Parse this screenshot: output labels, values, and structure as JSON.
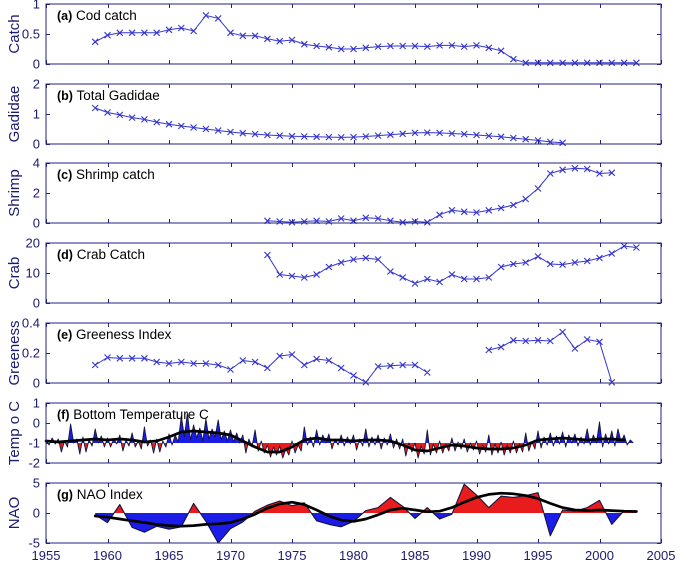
{
  "figure": {
    "description": "Seven stacked time-series panels, West Greenland ecosystem indicators 1955-2005"
  },
  "style": {
    "background": "#ffffff",
    "axis_color": "#23237f",
    "tick_text_color": "#1b1b70",
    "title_color": "#000000",
    "series_color": "#3636cf",
    "noise_line": "#15153a",
    "smooth_line": "#000000",
    "fill_red": "#e81c1c",
    "fill_blue": "#1c1ce8"
  },
  "x_axis": {
    "min": 1955,
    "max": 2005,
    "ticks": [
      1955,
      1960,
      1965,
      1970,
      1975,
      1980,
      1985,
      1990,
      1995,
      2000,
      2005
    ],
    "tick_labels": [
      "1955",
      "1960",
      "1965",
      "1970",
      "1975",
      "1980",
      "1985",
      "1990",
      "1995",
      "2000",
      "2005"
    ]
  },
  "chart_data": [
    {
      "id": "a",
      "type": "line",
      "title_tag": "(a)",
      "title": "Cod catch",
      "ylabel": "Catch",
      "ylim": [
        0,
        1
      ],
      "yticks": [
        0,
        0.5,
        1
      ],
      "marker": "x",
      "segments": [
        {
          "start_year": 1959,
          "step": 1,
          "values": [
            0.37,
            0.48,
            0.52,
            0.52,
            0.52,
            0.52,
            0.57,
            0.6,
            0.55,
            0.81,
            0.76,
            0.52,
            0.47,
            0.47,
            0.42,
            0.38,
            0.4,
            0.33,
            0.3,
            0.28,
            0.25,
            0.25,
            0.27,
            0.29,
            0.3,
            0.3,
            0.3,
            0.29,
            0.31,
            0.31,
            0.29,
            0.31,
            0.27,
            0.22,
            0.08,
            0.02,
            0.02,
            0.02,
            0.02,
            0.02,
            0.02,
            0.02,
            0.02,
            0.02,
            0.02
          ]
        }
      ]
    },
    {
      "id": "b",
      "type": "line",
      "title_tag": "(b)",
      "title": "Total Gadidae",
      "ylabel": "Gadidae",
      "ylim": [
        0,
        2
      ],
      "yticks": [
        0,
        1,
        2
      ],
      "marker": "x",
      "segments": [
        {
          "start_year": 1959,
          "step": 1,
          "values": [
            1.2,
            1.05,
            0.97,
            0.88,
            0.82,
            0.73,
            0.66,
            0.6,
            0.55,
            0.5,
            0.45,
            0.4,
            0.36,
            0.33,
            0.3,
            0.28,
            0.26,
            0.25,
            0.24,
            0.23,
            0.22,
            0.23,
            0.25,
            0.28,
            0.31,
            0.34,
            0.37,
            0.38,
            0.37,
            0.35,
            0.33,
            0.3,
            0.27,
            0.24,
            0.2,
            0.16,
            0.12,
            0.07,
            0.04
          ]
        }
      ]
    },
    {
      "id": "c",
      "type": "line",
      "title_tag": "(c)",
      "title": "Shrimp catch",
      "ylabel": "Shrimp",
      "ylim": [
        0,
        4
      ],
      "yticks": [
        0,
        2,
        4
      ],
      "marker": "x",
      "segments": [
        {
          "start_year": 1973,
          "step": 1,
          "values": [
            0.15,
            0.1,
            0.05,
            0.1,
            0.15,
            0.1,
            0.3,
            0.15,
            0.35,
            0.3,
            0.15,
            0.05,
            0.1,
            0.05,
            0.55,
            0.85,
            0.75,
            0.7,
            0.85,
            1.0,
            1.2,
            1.6,
            2.3,
            3.3,
            3.55,
            3.65,
            3.6,
            3.3,
            3.35
          ]
        }
      ]
    },
    {
      "id": "d",
      "type": "line",
      "title_tag": "(d)",
      "title": "Crab Catch",
      "ylabel": "Crab",
      "ylim": [
        0,
        20
      ],
      "yticks": [
        0,
        10,
        20
      ],
      "marker": "x",
      "segments": [
        {
          "start_year": 1973,
          "step": 1,
          "values": [
            16,
            9.5,
            9,
            8.5,
            9.5,
            12,
            13.5,
            14.5,
            15,
            14.5,
            10.5,
            8.5,
            6.5,
            8,
            7,
            9.5,
            8,
            8,
            8.5,
            12,
            13,
            13.5,
            15.5,
            13,
            12.8,
            13.5,
            14,
            15,
            16.5,
            19,
            18.5
          ]
        }
      ]
    },
    {
      "id": "e",
      "type": "line",
      "title_tag": "(e)",
      "title": "Greeness Index",
      "ylabel": "Greeness",
      "ylim": [
        0,
        0.4
      ],
      "yticks": [
        0,
        0.2,
        0.4
      ],
      "marker": "x",
      "segments": [
        {
          "start_year": 1959,
          "step": 1,
          "values": [
            0.12,
            0.17,
            0.165,
            0.165,
            0.165,
            0.14,
            0.13,
            0.14,
            0.13,
            0.13,
            0.12,
            0.09,
            0.15,
            0.14,
            0.1,
            0.18,
            0.19,
            0.12,
            0.16,
            0.15,
            0.1,
            0.05,
            0.005,
            0.11,
            0.115,
            0.12,
            0.12,
            0.07
          ]
        },
        {
          "start_year": 1991,
          "step": 1,
          "values": [
            0.22,
            0.24,
            0.285,
            0.28,
            0.285,
            0.28,
            0.34,
            0.23,
            0.29,
            0.275,
            0.005
          ]
        }
      ]
    },
    {
      "id": "f",
      "type": "anomaly",
      "title_tag": "(f)",
      "title": "Bottom Temperature  C",
      "ylabel": "Temp o C",
      "ylim": [
        -2,
        1
      ],
      "yticks": [
        -2,
        -1,
        0,
        1
      ],
      "baseline": -1,
      "fill_above": "#1c1ce8",
      "fill_below": "#e81c1c",
      "noisy": {
        "start_year": 1955,
        "step": 0.25,
        "values": [
          -0.85,
          -1.1,
          -0.75,
          -1.05,
          -0.8,
          -1.45,
          -0.9,
          -1.2,
          -0.05,
          -1.0,
          -0.8,
          -1.55,
          -0.7,
          -1.45,
          -0.85,
          -1.15,
          -0.3,
          -1.0,
          -0.65,
          -1.2,
          -0.75,
          -1.2,
          -0.8,
          -1.05,
          -0.6,
          -1.4,
          -0.85,
          -1.15,
          -0.5,
          -1.2,
          -0.9,
          -1.3,
          -0.2,
          -1.15,
          -0.85,
          -1.5,
          -0.8,
          -1.45,
          -0.9,
          -1.2,
          -0.55,
          -1.1,
          -0.6,
          -0.95,
          0.35,
          -0.7,
          0.5,
          -0.85,
          -0.1,
          -0.75,
          -0.25,
          -0.9,
          0.2,
          -0.8,
          -0.3,
          -0.7,
          0.15,
          -0.85,
          -0.4,
          -0.9,
          -0.35,
          -0.95,
          -0.5,
          -1.0,
          -0.6,
          -1.5,
          -0.8,
          -1.2,
          -0.35,
          -1.4,
          -0.9,
          -1.5,
          -1.1,
          -1.7,
          -1.2,
          -1.6,
          -1.15,
          -1.75,
          -1.3,
          -1.6,
          -0.9,
          -1.5,
          -1.1,
          -1.4,
          -0.2,
          -1.1,
          -0.7,
          -1.2,
          -0.35,
          -1.1,
          -0.6,
          -1.0,
          -0.55,
          -1.3,
          -0.8,
          -1.1,
          -0.6,
          -1.15,
          -0.7,
          -1.05,
          -0.6,
          -1.35,
          -0.8,
          -1.15,
          -0.3,
          -1.2,
          -0.7,
          -1.1,
          -0.6,
          -1.3,
          -0.75,
          -1.1,
          -0.55,
          -1.25,
          -0.8,
          -1.3,
          -0.8,
          -1.65,
          -1.0,
          -1.45,
          -1.0,
          -1.75,
          -1.15,
          -1.55,
          -0.35,
          -1.6,
          -1.05,
          -1.5,
          -0.9,
          -1.5,
          -1.05,
          -1.4,
          -0.75,
          -1.4,
          -0.95,
          -1.3,
          -0.8,
          -1.45,
          -1.0,
          -1.35,
          -0.9,
          -1.55,
          -1.1,
          -1.45,
          -0.6,
          -1.6,
          -1.05,
          -1.5,
          -0.95,
          -1.6,
          -1.1,
          -1.5,
          -0.9,
          -1.5,
          -1.05,
          -1.45,
          -0.5,
          -1.4,
          -0.95,
          -1.3,
          -0.4,
          -1.25,
          -0.7,
          -1.1,
          -0.5,
          -1.15,
          -0.65,
          -1.05,
          -0.45,
          -1.2,
          -0.6,
          -1.0,
          -0.55,
          -1.15,
          -0.7,
          -1.05,
          -0.3,
          -1.1,
          -0.6,
          -1.0,
          0.05,
          -1.2,
          -0.55,
          -1.05,
          -0.4,
          -1.15,
          -0.3,
          -0.95,
          -0.6,
          -1.1,
          -0.85,
          -1.0
        ]
      },
      "smooth": {
        "start_year": 1955,
        "step": 1,
        "values": [
          -0.9,
          -0.95,
          -0.9,
          -0.85,
          -0.8,
          -0.85,
          -0.8,
          -0.85,
          -0.95,
          -0.9,
          -0.7,
          -0.45,
          -0.4,
          -0.45,
          -0.5,
          -0.6,
          -0.9,
          -1.2,
          -1.45,
          -1.45,
          -1.2,
          -0.85,
          -0.75,
          -0.85,
          -0.85,
          -0.9,
          -0.85,
          -0.85,
          -0.9,
          -1.1,
          -1.35,
          -1.4,
          -1.25,
          -1.1,
          -1.15,
          -1.25,
          -1.3,
          -1.3,
          -1.25,
          -1.1,
          -0.85,
          -0.8,
          -0.75,
          -0.8,
          -0.85,
          -0.8,
          -0.8,
          -0.85
        ]
      }
    },
    {
      "id": "g",
      "type": "anomaly",
      "title_tag": "(g)",
      "title": "NAO Index",
      "ylabel": "NAO",
      "ylim": [
        -5,
        5
      ],
      "yticks": [
        -5,
        0,
        5
      ],
      "baseline": 0,
      "fill_above": "#e81c1c",
      "fill_below": "#1c1ce8",
      "noisy": {
        "start_year": 1959,
        "step": 1,
        "values": [
          -0.3,
          -1.6,
          1.4,
          -2.4,
          -3.2,
          -2.2,
          -2.7,
          -2.3,
          1.6,
          -1.4,
          -5.0,
          -2.6,
          -1.5,
          0.3,
          1.3,
          2.0,
          1.2,
          1.7,
          -1.3,
          -1.9,
          -2.3,
          -1.4,
          0.4,
          0.9,
          2.6,
          1.1,
          -0.9,
          0.9,
          -1.0,
          -0.2,
          4.8,
          3.0,
          0.9,
          2.8,
          2.6,
          2.9,
          3.4,
          -3.8,
          0.5,
          0.3,
          0.9,
          2.1,
          -1.9,
          0.4,
          0.3
        ]
      },
      "smooth": {
        "start_year": 1959,
        "step": 1,
        "values": [
          -0.5,
          -0.7,
          -1.0,
          -1.3,
          -1.6,
          -1.9,
          -2.1,
          -2.2,
          -2.1,
          -1.9,
          -1.8,
          -1.6,
          -1.0,
          -0.2,
          0.8,
          1.5,
          1.8,
          1.4,
          0.5,
          -0.5,
          -1.2,
          -1.4,
          -1.0,
          -0.3,
          0.5,
          0.8,
          0.5,
          0.2,
          0.3,
          0.9,
          1.8,
          2.6,
          3.1,
          3.3,
          3.2,
          2.9,
          2.4,
          1.6,
          0.9,
          0.5,
          0.4,
          0.5,
          0.4,
          0.3,
          0.25
        ]
      }
    }
  ]
}
